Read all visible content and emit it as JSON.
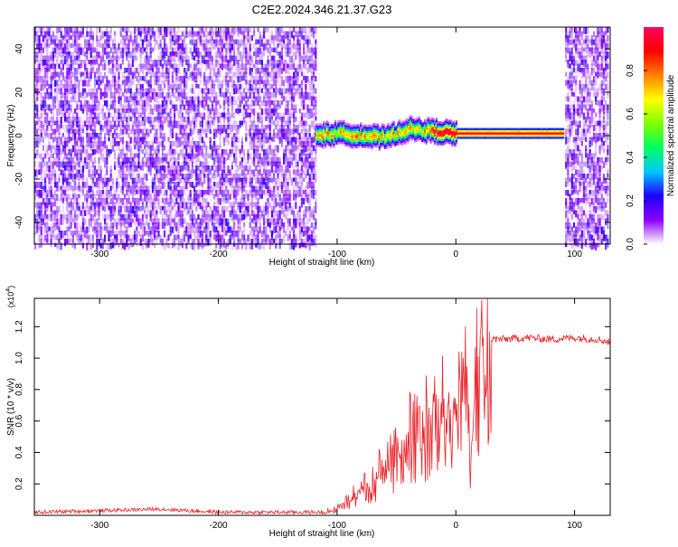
{
  "title": "C2E2.2024.346.21.37.G23",
  "chart_data": [
    {
      "type": "heatmap",
      "title": "C2E2.2024.346.21.37.G23",
      "xlabel": "Height of straight line (km)",
      "ylabel": "Frequency (Hz)",
      "xlim": [
        -355,
        130
      ],
      "ylim": [
        -50,
        50
      ],
      "xticks": [
        -300,
        -200,
        -100,
        0,
        100
      ],
      "xtick_labels": [
        "-300",
        "-200",
        "-100",
        "0",
        "100"
      ],
      "yticks": [
        -40,
        -20,
        0,
        20,
        40
      ],
      "ytick_labels": [
        "-40",
        "-20",
        "0",
        "20",
        "40"
      ],
      "colorbar": {
        "label": "Normalized spectral amplitude",
        "range": [
          0,
          1
        ],
        "ticks": [
          0.0,
          0.2,
          0.4,
          0.6,
          0.8
        ],
        "tick_labels": [
          "0.0",
          "0.2",
          "0.4",
          "0.6",
          "0.8"
        ],
        "colors": [
          "#ffffff",
          "#8b00ff",
          "#2000ff",
          "#00c8ff",
          "#00ff60",
          "#80ff00",
          "#ffff00",
          "#ff8000",
          "#ff0000",
          "#ff0060"
        ]
      },
      "regions": [
        {
          "x_range": [
            -355,
            -118
          ],
          "description_value": "broadband noise",
          "amplitude": 0.2
        },
        {
          "x_range": [
            -118,
            90
          ],
          "center_freq_hz": [
            [
              -118,
              0
            ],
            [
              -100,
              1
            ],
            [
              -80,
              0
            ],
            [
              -60,
              -1
            ],
            [
              -40,
              3
            ],
            [
              -20,
              2
            ],
            [
              0,
              1
            ],
            [
              90,
              1
            ]
          ],
          "peak_amplitude": 1.0
        },
        {
          "x_range": [
            92,
            128
          ],
          "description_value": "broadband noise",
          "amplitude": 0.2
        }
      ]
    },
    {
      "type": "line",
      "xlabel": "Height of straight line (km)",
      "ylabel": "SNR (10 * v/v)",
      "scale_label": "(x10^4)",
      "scale_base": "(x10",
      "scale_exp": "4",
      "scale_close": ")",
      "xlim": [
        -355,
        130
      ],
      "ylim": [
        0,
        1.38
      ],
      "xticks": [
        -300,
        -200,
        -100,
        0,
        100
      ],
      "xtick_labels": [
        "-300",
        "-200",
        "-100",
        "0",
        "100"
      ],
      "yticks": [
        0.2,
        0.4,
        0.6,
        0.8,
        1.0,
        1.2
      ],
      "ytick_labels": [
        "0.2",
        "0.4",
        "0.6",
        "0.8",
        "1.0",
        "1.2"
      ],
      "color": "#e8232a",
      "series": [
        {
          "x": [
            -355,
            -300,
            -250,
            -200,
            -150,
            -110,
            -100,
            -90,
            -80,
            -70,
            -60,
            -50,
            -40,
            -30,
            -20,
            -10,
            0,
            5,
            10,
            12,
            15,
            20,
            30,
            40,
            60,
            80,
            100,
            120,
            130
          ],
          "values": [
            0.02,
            0.03,
            0.04,
            0.02,
            0.02,
            0.02,
            0.05,
            0.12,
            0.18,
            0.25,
            0.38,
            0.48,
            0.58,
            0.62,
            0.72,
            0.78,
            0.85,
            0.95,
            1.0,
            0.2,
            0.95,
            1.05,
            1.12,
            1.12,
            1.13,
            1.12,
            1.13,
            1.12,
            1.1
          ]
        }
      ]
    }
  ]
}
